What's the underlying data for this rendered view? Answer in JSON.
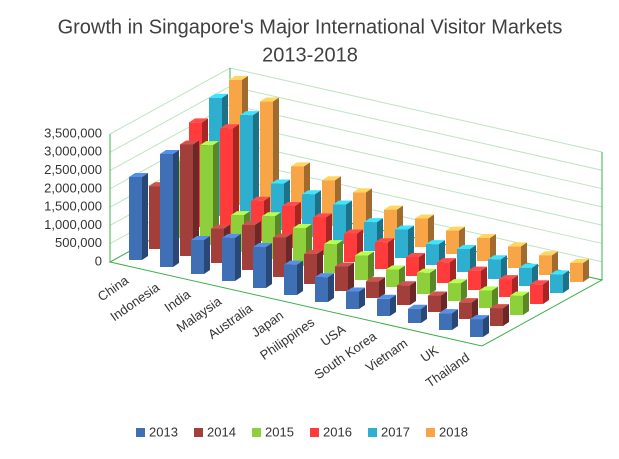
{
  "chart_data": {
    "type": "bar3d",
    "title": "Growth in Singapore's Major International Visitor Markets",
    "subtitle": "2013-2018",
    "categories": [
      "China",
      "Indonesia",
      "India",
      "Malaysia",
      "Australia",
      "Japan",
      "Philippines",
      "USA",
      "South Korea",
      "Vietnam",
      "UK",
      "Thailand"
    ],
    "series": [
      {
        "name": "2013",
        "color": "#3f6fb5",
        "values": [
          2270000,
          3090000,
          930000,
          1180000,
          1120000,
          830000,
          680000,
          480000,
          470000,
          390000,
          460000,
          490000
        ]
      },
      {
        "name": "2014",
        "color": "#a33f3b",
        "values": [
          1720000,
          3050000,
          940000,
          1230000,
          1080000,
          820000,
          670000,
          460000,
          540000,
          450000,
          460000,
          490000
        ]
      },
      {
        "name": "2015",
        "color": "#8dd03c",
        "values": [
          2110000,
          2730000,
          1010000,
          1170000,
          1040000,
          790000,
          670000,
          480000,
          580000,
          490000,
          480000,
          530000
        ]
      },
      {
        "name": "2016",
        "color": "#ff3b3b",
        "values": [
          2860000,
          2890000,
          1100000,
          1150000,
          1030000,
          780000,
          730000,
          520000,
          570000,
          530000,
          490000,
          540000
        ]
      },
      {
        "name": "2017",
        "color": "#2eafd0",
        "values": [
          3230000,
          2950000,
          1270000,
          1170000,
          1080000,
          790000,
          780000,
          570000,
          630000,
          540000,
          500000,
          510000
        ]
      },
      {
        "name": "2018",
        "color": "#f8a548",
        "values": [
          3420000,
          3020000,
          1440000,
          1250000,
          1110000,
          830000,
          780000,
          640000,
          630000,
          590000,
          540000,
          520000
        ]
      }
    ],
    "ylim": [
      0,
      3500000
    ],
    "yticks": [
      0,
      {
        "value": 500000,
        "label": "500,000"
      },
      {
        "value": 1000000,
        "label": "1,000,000"
      },
      {
        "value": 1500000,
        "label": "1,500,000"
      },
      {
        "value": 2000000,
        "label": "2,000,000"
      },
      {
        "value": 2500000,
        "label": "2,500,000"
      },
      {
        "value": 3000000,
        "label": "3,000,000"
      },
      {
        "value": 3500000,
        "label": "3,500,000"
      }
    ],
    "grid": true,
    "legend": "bottom"
  }
}
